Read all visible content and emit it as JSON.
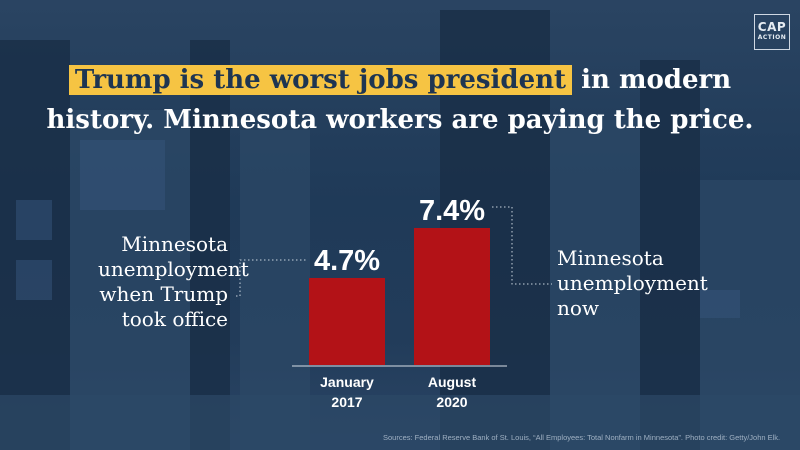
{
  "brand": {
    "logo_top": "CAP",
    "logo_bottom": "ACTION"
  },
  "headline": {
    "highlight": "Trump is the worst jobs president",
    "line1_rest": " in modern",
    "line2": "history. Minnesota workers are paying the price."
  },
  "colors": {
    "bar": "#b31217",
    "highlight": "#f6c443",
    "background": "#1f3550"
  },
  "chart_data": {
    "type": "bar",
    "title": "Trump is the worst jobs president in modern history. Minnesota workers are paying the price.",
    "categories": [
      "January 2017",
      "August 2020"
    ],
    "category_lines": [
      [
        "January",
        "2017"
      ],
      [
        "August",
        "2020"
      ]
    ],
    "values": [
      4.7,
      7.4
    ],
    "value_labels": [
      "4.7%",
      "7.4%"
    ],
    "annotations": [
      "Minnesota unemployment when Trump took office",
      "Minnesota unemployment now"
    ],
    "ylim": [
      0,
      7.4
    ],
    "grid": false,
    "legend": "none"
  },
  "annotations": {
    "left_lines": [
      "Minnesota",
      "unemployment",
      "when Trump",
      "took office"
    ],
    "right_lines": [
      "Minnesota",
      "unemployment",
      "now"
    ]
  },
  "source": "Sources: Federal Reserve Bank of St. Louis, “All Employees: Total Nonfarm in Minnesota”. Photo credit: Getty/John Elk."
}
